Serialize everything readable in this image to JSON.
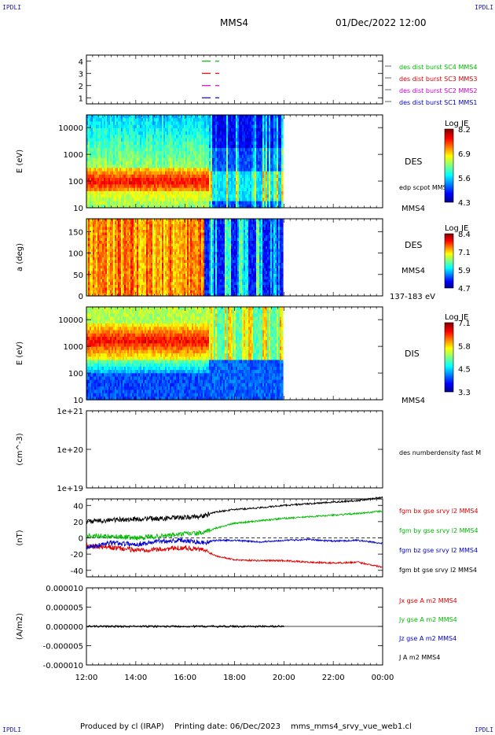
{
  "corners": [
    "IPDLI",
    "IPDLI",
    "IPDLI",
    "IPDLI"
  ],
  "header": {
    "title": "MMS4",
    "datetime": "01/Dec/2022 12:00"
  },
  "footer": {
    "produced_by": "Produced by cl (IRAP)",
    "printing_date": "Printing date: 06/Dec/2023",
    "product": "mms_mms4_srvy_vue_web1.cl"
  },
  "colors": {
    "blue": "#0000cc",
    "magenta": "#cc00cc",
    "red": "#dd0000",
    "green": "#00bb00",
    "black": "#000000"
  },
  "chart_data": [
    {
      "type": "line",
      "panel": "burst-flags",
      "ylim": [
        0.5,
        4.5
      ],
      "yticks": [
        "4",
        "3",
        "2",
        "1"
      ],
      "series": [
        {
          "name": "des dist burst SC1 MMS1",
          "color": "#0000cc",
          "level": 1,
          "x": [
            "16:30",
            "17:30"
          ]
        },
        {
          "name": "des dist burst SC2 MMS2",
          "color": "#cc00cc",
          "level": 2,
          "x": [
            "16:30",
            "17:30"
          ]
        },
        {
          "name": "des dist burst SC3 MMS3",
          "color": "#dd0000",
          "level": 3,
          "x": [
            "16:30",
            "17:30"
          ]
        },
        {
          "name": "des dist burst SC4 MMS4",
          "color": "#00bb00",
          "level": 4,
          "x": [
            "16:30",
            "17:30"
          ]
        }
      ]
    },
    {
      "type": "heatmap",
      "panel": "des-energy",
      "ylabel": "E (eV)",
      "yscale": "log",
      "ylim": [
        10,
        30000
      ],
      "yticks": [
        "10000",
        "1000",
        "100",
        "10"
      ],
      "data_end": "20:00",
      "label": "DES",
      "sublabel": "edp scpot MMS4",
      "spacecraft": "MMS4",
      "colorbar": {
        "title": "Log JE",
        "ticks": [
          "8.2",
          "6.9",
          "5.6",
          "4.3"
        ]
      }
    },
    {
      "type": "heatmap",
      "panel": "des-pitch",
      "ylabel": "a (deg)",
      "ylim": [
        0,
        180
      ],
      "yticks": [
        "150",
        "100",
        "50",
        "0"
      ],
      "data_end": "20:00",
      "label": "DES",
      "spacecraft": "MMS4",
      "energy_range": "137-183 eV",
      "colorbar": {
        "title": "Log JE",
        "ticks": [
          "8.4",
          "7.1",
          "5.9",
          "4.7"
        ]
      }
    },
    {
      "type": "heatmap",
      "panel": "dis-energy",
      "ylabel": "E (eV)",
      "yscale": "log",
      "ylim": [
        10,
        30000
      ],
      "yticks": [
        "10000",
        "1000",
        "100",
        "10"
      ],
      "data_end": "20:00",
      "label": "DIS",
      "spacecraft": "MMS4",
      "colorbar": {
        "title": "Log JE",
        "ticks": [
          "7.1",
          "5.8",
          "4.5",
          "3.3"
        ]
      }
    },
    {
      "type": "line",
      "panel": "density",
      "ylabel": "(cm^-3)",
      "yscale": "log",
      "yticks": [
        "1e+21",
        "1e+20",
        "1e+19"
      ],
      "series": [
        {
          "name": "des numberdensity fast M",
          "color": "#000000",
          "values": []
        }
      ]
    },
    {
      "type": "line",
      "panel": "magnetic-field",
      "ylabel": "(nT)",
      "ylim": [
        -48,
        48
      ],
      "yticks": [
        "40",
        "20",
        "0",
        "-20",
        "-40"
      ],
      "x": [
        "12:00",
        "13:00",
        "14:00",
        "15:00",
        "16:00",
        "16:45",
        "17:15",
        "18:00",
        "19:00",
        "20:00",
        "21:00",
        "22:00",
        "23:00",
        "00:00"
      ],
      "series": [
        {
          "name": "fgm bx gse srvy l2 MMS4",
          "color": "#dd0000",
          "values": [
            -10,
            -12,
            -15,
            -14,
            -12,
            -15,
            -22,
            -27,
            -28,
            -28,
            -30,
            -31,
            -30,
            -36
          ]
        },
        {
          "name": "fgm by gse srvy l2 MMS4",
          "color": "#00bb00",
          "values": [
            3,
            2,
            0,
            2,
            5,
            6,
            12,
            18,
            21,
            24,
            26,
            28,
            30,
            33
          ]
        },
        {
          "name": "fgm bz gse srvy l2 MMS4",
          "color": "#0000cc",
          "values": [
            -12,
            -6,
            -8,
            -4,
            -3,
            -6,
            -3,
            -3,
            -5,
            -3,
            -2,
            -4,
            -3,
            -7
          ]
        },
        {
          "name": "fgm bt gse srvy l2 MMS4",
          "color": "#000000",
          "values": [
            20,
            22,
            23,
            24,
            25,
            27,
            32,
            35,
            37,
            40,
            42,
            44,
            46,
            50
          ]
        }
      ]
    },
    {
      "type": "line",
      "panel": "current-density",
      "ylabel": "(A/m2)",
      "ylim": [
        -1e-05,
        1e-05
      ],
      "yticks": [
        "0.000010",
        "0.000005",
        "0.000000",
        "-0.000005",
        "-0.000010"
      ],
      "series": [
        {
          "name": "Jx gse A m2 MMS4",
          "color": "#dd0000"
        },
        {
          "name": "Jy gse A m2 MMS4",
          "color": "#00bb00"
        },
        {
          "name": "Jz gse A m2 MMS4",
          "color": "#0000cc"
        },
        {
          "name": "J A m2 MMS4",
          "color": "#000000"
        }
      ]
    }
  ],
  "xaxis": {
    "ticks": [
      "12:00",
      "14:00",
      "16:00",
      "18:00",
      "20:00",
      "22:00",
      "00:00"
    ],
    "range": [
      "12:00",
      "00:00"
    ]
  }
}
